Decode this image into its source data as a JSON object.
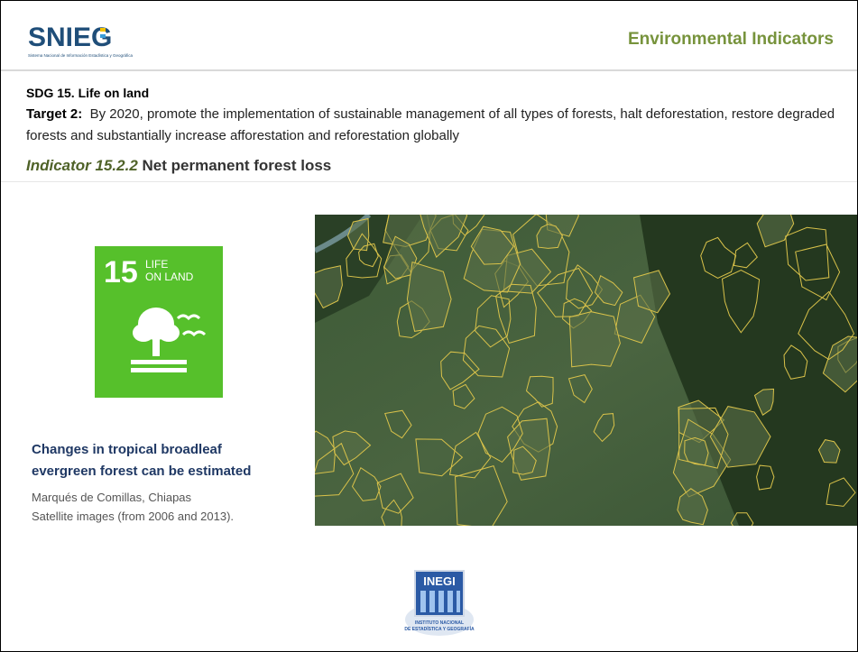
{
  "logo": {
    "name": "SNIEG",
    "subtitle": "Sistema Nacional de Información Estadística y Geográfica"
  },
  "header": {
    "title": "Environmental Indicators"
  },
  "sdg": {
    "heading": "SDG 15. Life on land"
  },
  "target": {
    "label": "Target 2:",
    "text": "By 2020, promote the implementation of sustainable management of all types of forests, halt deforestation, restore degraded forests and substantially increase afforestation and reforestation globally"
  },
  "indicator": {
    "number": "Indicator 15.2.2",
    "name": "Net permanent forest loss"
  },
  "icon": {
    "number": "15",
    "line1": "LIFE",
    "line2": "ON LAND"
  },
  "caption": {
    "heading_lines": [
      "Changes in tropical broadleaf",
      "evergreen forest can be estimated"
    ],
    "location": "Marqués de Comillas, Chiapas",
    "source": "Satellite images (from 2006 and 2013)."
  },
  "inegi": {
    "name": "INEGI",
    "line1": "INSTITUTO NACIONAL",
    "line2": "DE ESTADÍSTICA Y GEOGRAFÍA"
  }
}
